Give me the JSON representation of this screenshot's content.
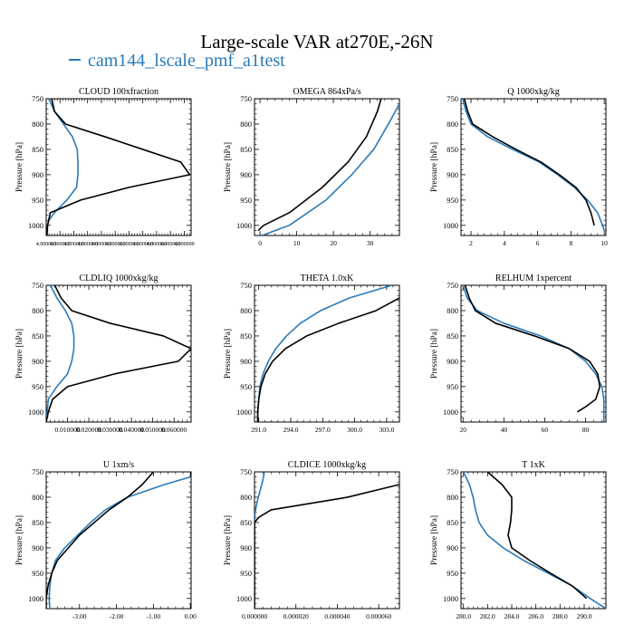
{
  "title": "Large-scale VAR at270E,-26N",
  "legend": [
    {
      "label": "cam144_lscale_pmf_a1test",
      "color": "#2a7ab8"
    }
  ],
  "colors": {
    "series_1": "#2a7ab8",
    "series_2": "#000000"
  },
  "chart_data": [
    {
      "type": "line",
      "title": "CLOUD  100xfraction",
      "ylabel": "Pressure [hPa]",
      "ylim": [
        1020,
        750
      ],
      "xlim": [
        4.0,
        4.00000021
      ],
      "xtick_labels": [
        "4.000000",
        "4.000000",
        "4.000000",
        "4.000000",
        "4.000000",
        "4.000000",
        "4.000000",
        "4.000000",
        "4.000000",
        "4.000000",
        "4.000000"
      ],
      "xticks": [
        4.0,
        4.00000002,
        4.00000004,
        4.00000006,
        4.00000008,
        4.0000001,
        4.00000012,
        4.00000014,
        4.00000016,
        4.00000018,
        4.0000002
      ],
      "yticks": [
        750,
        800,
        850,
        900,
        950,
        1000
      ],
      "series": [
        {
          "values": [
            [
              4.000000004,
              750
            ],
            [
              4.000000012,
              775
            ],
            [
              4.000000025,
              800
            ],
            [
              4.000000038,
              825
            ],
            [
              4.000000045,
              850
            ],
            [
              4.000000046,
              875
            ],
            [
              4.000000046,
              900
            ],
            [
              4.000000044,
              925
            ],
            [
              4.00000003,
              950
            ],
            [
              4.000000012,
              975
            ],
            [
              4.000000004,
              990
            ],
            [
              4.000000002,
              1000
            ],
            [
              4.000000001,
              1020
            ]
          ]
        },
        {
          "values": [
            [
              4.000000008,
              750
            ],
            [
              4.000000012,
              775
            ],
            [
              4.000000028,
              800
            ],
            [
              4.000000085,
              825
            ],
            [
              4.00000014,
              850
            ],
            [
              4.000000195,
              875
            ],
            [
              4.000000208,
              900
            ],
            [
              4.00000012,
              925
            ],
            [
              4.00000005,
              950
            ],
            [
              4.000000006,
              975
            ],
            [
              4.000000002,
              1000
            ],
            [
              4.000000001,
              1020
            ]
          ]
        }
      ]
    },
    {
      "type": "line",
      "title": "OMEGA  864xPa/s",
      "ylabel": "Pressure [hPa]",
      "ylim": [
        1020,
        750
      ],
      "xlim": [
        -1.5,
        38
      ],
      "xtick_labels": [
        "0",
        "10",
        "20",
        "30"
      ],
      "xticks": [
        0,
        10,
        20,
        30
      ],
      "yticks": [
        750,
        800,
        850,
        900,
        950,
        1000
      ],
      "series": [
        {
          "values": [
            [
              38,
              760
            ],
            [
              35,
              800
            ],
            [
              31,
              850
            ],
            [
              25,
              900
            ],
            [
              18,
              950
            ],
            [
              8,
              1000
            ],
            [
              0.5,
              1020
            ]
          ]
        },
        {
          "values": [
            [
              33,
              750
            ],
            [
              32,
              775
            ],
            [
              29,
              825
            ],
            [
              24,
              875
            ],
            [
              17,
              925
            ],
            [
              8,
              975
            ],
            [
              1,
              1000
            ],
            [
              -0.5,
              1010
            ]
          ]
        }
      ]
    },
    {
      "type": "line",
      "title": "Q  1000xkg/kg",
      "ylabel": "Pressure [hPa]",
      "ylim": [
        1020,
        750
      ],
      "xlim": [
        1.4,
        10.1
      ],
      "xtick_labels": [
        "2",
        "4",
        "6",
        "8",
        "10"
      ],
      "xticks": [
        2,
        4,
        6,
        8,
        10
      ],
      "yticks": [
        750,
        800,
        850,
        900,
        950,
        1000
      ],
      "series": [
        {
          "values": [
            [
              1.5,
              750
            ],
            [
              1.7,
              775
            ],
            [
              2.0,
              800
            ],
            [
              3.0,
              825
            ],
            [
              4.5,
              850
            ],
            [
              6.1,
              875
            ],
            [
              7.2,
              900
            ],
            [
              8.2,
              925
            ],
            [
              9.0,
              950
            ],
            [
              9.6,
              975
            ],
            [
              9.9,
              1000
            ],
            [
              10.0,
              1010
            ]
          ]
        },
        {
          "values": [
            [
              1.6,
              750
            ],
            [
              1.8,
              775
            ],
            [
              2.1,
              800
            ],
            [
              3.3,
              825
            ],
            [
              4.7,
              850
            ],
            [
              6.2,
              875
            ],
            [
              7.3,
              900
            ],
            [
              8.3,
              925
            ],
            [
              8.9,
              950
            ],
            [
              9.2,
              975
            ],
            [
              9.4,
              1000
            ]
          ]
        }
      ]
    },
    {
      "type": "line",
      "title": "CLDLIQ  1000xkg/kg",
      "ylabel": "Pressure [hPa]",
      "ylim": [
        1020,
        750
      ],
      "xlim": [
        0.0,
        0.068
      ],
      "xtick_labels": [
        "0.010000",
        "0.020000",
        "0.030000",
        "0.040000",
        "0.050000",
        "0.060000"
      ],
      "xticks": [
        0.01,
        0.02,
        0.03,
        0.04,
        0.05,
        0.06
      ],
      "yticks": [
        750,
        800,
        850,
        900,
        950,
        1000
      ],
      "series": [
        {
          "values": [
            [
              0.002,
              750
            ],
            [
              0.005,
              775
            ],
            [
              0.009,
              800
            ],
            [
              0.012,
              825
            ],
            [
              0.013,
              850
            ],
            [
              0.013,
              875
            ],
            [
              0.012,
              900
            ],
            [
              0.01,
              925
            ],
            [
              0.005,
              950
            ],
            [
              0.001,
              975
            ],
            [
              0.0,
              1020
            ]
          ]
        },
        {
          "values": [
            [
              0.004,
              750
            ],
            [
              0.007,
              775
            ],
            [
              0.012,
              800
            ],
            [
              0.03,
              825
            ],
            [
              0.055,
              850
            ],
            [
              0.068,
              875
            ],
            [
              0.062,
              900
            ],
            [
              0.032,
              925
            ],
            [
              0.01,
              950
            ],
            [
              0.003,
              975
            ],
            [
              0.001,
              1000
            ],
            [
              0.0,
              1020
            ]
          ]
        }
      ]
    },
    {
      "type": "line",
      "title": "THETA  1.0xK",
      "ylabel": "Pressure [hPa]",
      "ylim": [
        1020,
        750
      ],
      "xlim": [
        290.6,
        304.2
      ],
      "xtick_labels": [
        "291.0",
        "294.0",
        "297.0",
        "300.0",
        "303.0"
      ],
      "xticks": [
        291,
        294,
        297,
        300,
        303
      ],
      "yticks": [
        750,
        800,
        850,
        900,
        950,
        1000
      ],
      "series": [
        {
          "values": [
            [
              303.5,
              750
            ],
            [
              299.5,
              775
            ],
            [
              296.8,
              800
            ],
            [
              294.9,
              825
            ],
            [
              293.6,
              850
            ],
            [
              292.6,
              875
            ],
            [
              291.9,
              900
            ],
            [
              291.4,
              925
            ],
            [
              291.1,
              950
            ],
            [
              291.0,
              975
            ],
            [
              290.9,
              1000
            ],
            [
              290.9,
              1020
            ]
          ]
        },
        {
          "values": [
            [
              304.2,
              775
            ],
            [
              302.0,
              800
            ],
            [
              298.5,
              825
            ],
            [
              295.5,
              850
            ],
            [
              293.5,
              875
            ],
            [
              292.3,
              900
            ],
            [
              291.6,
              925
            ],
            [
              291.2,
              950
            ],
            [
              291.0,
              975
            ],
            [
              290.9,
              1000
            ],
            [
              290.9,
              1020
            ]
          ]
        }
      ]
    },
    {
      "type": "line",
      "title": "RELHUM  1xpercent",
      "ylabel": "Pressure [hPa]",
      "ylim": [
        1020,
        750
      ],
      "xlim": [
        19,
        90
      ],
      "xtick_labels": [
        "20",
        "40",
        "60",
        "80"
      ],
      "xticks": [
        20,
        40,
        60,
        80
      ],
      "yticks": [
        750,
        800,
        850,
        900,
        950,
        1000
      ],
      "series": [
        {
          "values": [
            [
              20,
              750
            ],
            [
              22,
              775
            ],
            [
              27,
              800
            ],
            [
              40,
              825
            ],
            [
              58,
              850
            ],
            [
              72,
              875
            ],
            [
              80,
              900
            ],
            [
              85,
              925
            ],
            [
              88,
              950
            ],
            [
              89,
              975
            ],
            [
              89,
              1000
            ],
            [
              89,
              1020
            ]
          ]
        },
        {
          "values": [
            [
              21,
              750
            ],
            [
              23,
              775
            ],
            [
              26,
              800
            ],
            [
              36,
              825
            ],
            [
              55,
              850
            ],
            [
              72,
              875
            ],
            [
              82,
              900
            ],
            [
              86,
              925
            ],
            [
              87,
              950
            ],
            [
              85,
              975
            ],
            [
              80,
              990
            ],
            [
              76,
              1000
            ]
          ]
        }
      ]
    },
    {
      "type": "line",
      "title": "U  1xm/s",
      "ylabel": "Pressure [hPa]",
      "ylim": [
        1020,
        750
      ],
      "xlim": [
        -3.9,
        0.02
      ],
      "xtick_labels": [
        "-3.00",
        "-2.00",
        "-1.00",
        "0.00"
      ],
      "xticks": [
        -3,
        -2,
        -1,
        0
      ],
      "yticks": [
        750,
        800,
        850,
        900,
        950,
        1000
      ],
      "series": [
        {
          "values": [
            [
              0.0,
              760
            ],
            [
              -0.7,
              775
            ],
            [
              -1.7,
              800
            ],
            [
              -2.3,
              825
            ],
            [
              -2.7,
              850
            ],
            [
              -3.05,
              875
            ],
            [
              -3.4,
              900
            ],
            [
              -3.65,
              925
            ],
            [
              -3.75,
              950
            ],
            [
              -3.8,
              975
            ],
            [
              -3.82,
              1000
            ],
            [
              -3.8,
              1020
            ]
          ]
        },
        {
          "values": [
            [
              -1.0,
              750
            ],
            [
              -1.3,
              775
            ],
            [
              -1.7,
              800
            ],
            [
              -2.2,
              825
            ],
            [
              -2.6,
              850
            ],
            [
              -3.0,
              875
            ],
            [
              -3.3,
              900
            ],
            [
              -3.6,
              925
            ],
            [
              -3.75,
              950
            ],
            [
              -3.85,
              975
            ],
            [
              -3.9,
              1000
            ],
            [
              -3.9,
              1020
            ]
          ]
        }
      ]
    },
    {
      "type": "line",
      "title": "CLDICE  1000xkg/kg",
      "ylabel": "Pressure [hPa]",
      "ylim": [
        1020,
        750
      ],
      "xlim": [
        0.0,
        7e-05
      ],
      "xtick_labels": [
        "0.000000",
        "0.000020",
        "0.000040",
        "0.000060"
      ],
      "xticks": [
        0.0,
        2e-05,
        4e-05,
        6e-05
      ],
      "yticks": [
        750,
        800,
        850,
        900,
        950,
        1000
      ],
      "series": [
        {
          "values": [
            [
              4.8e-06,
              750
            ],
            [
              3.8e-06,
              770
            ],
            [
              2.5e-06,
              790
            ],
            [
              1.2e-06,
              810
            ],
            [
              3e-07,
              830
            ],
            [
              0.0,
              850
            ],
            [
              0.0,
              1020
            ]
          ]
        },
        {
          "values": [
            [
              7e-05,
              775
            ],
            [
              4.5e-05,
              800
            ],
            [
              8e-06,
              825
            ],
            [
              2e-06,
              840
            ],
            [
              0.0,
              850
            ],
            [
              0.0,
              1020
            ]
          ]
        }
      ]
    },
    {
      "type": "line",
      "title": "T  1xK",
      "ylabel": "Pressure [hPa]",
      "ylim": [
        1020,
        750
      ],
      "xlim": [
        279.8,
        291.8
      ],
      "xtick_labels": [
        "280.0",
        "282.0",
        "284.0",
        "286.0",
        "288.0",
        "290.0"
      ],
      "xticks": [
        280,
        282,
        284,
        286,
        288,
        290
      ],
      "yticks": [
        750,
        800,
        850,
        900,
        950,
        1000
      ],
      "series": [
        {
          "values": [
            [
              280.0,
              750
            ],
            [
              280.5,
              775
            ],
            [
              280.8,
              800
            ],
            [
              281.0,
              825
            ],
            [
              281.3,
              850
            ],
            [
              282.0,
              875
            ],
            [
              283.3,
              900
            ],
            [
              285.0,
              925
            ],
            [
              287.0,
              950
            ],
            [
              289.0,
              975
            ],
            [
              290.5,
              1000
            ],
            [
              291.8,
              1020
            ]
          ]
        },
        {
          "values": [
            [
              282.0,
              750
            ],
            [
              283.2,
              775
            ],
            [
              284.0,
              800
            ],
            [
              284.0,
              825
            ],
            [
              283.9,
              850
            ],
            [
              283.7,
              875
            ],
            [
              284.0,
              900
            ],
            [
              285.5,
              925
            ],
            [
              287.2,
              950
            ],
            [
              289.0,
              975
            ],
            [
              290.2,
              1000
            ]
          ]
        }
      ]
    }
  ]
}
